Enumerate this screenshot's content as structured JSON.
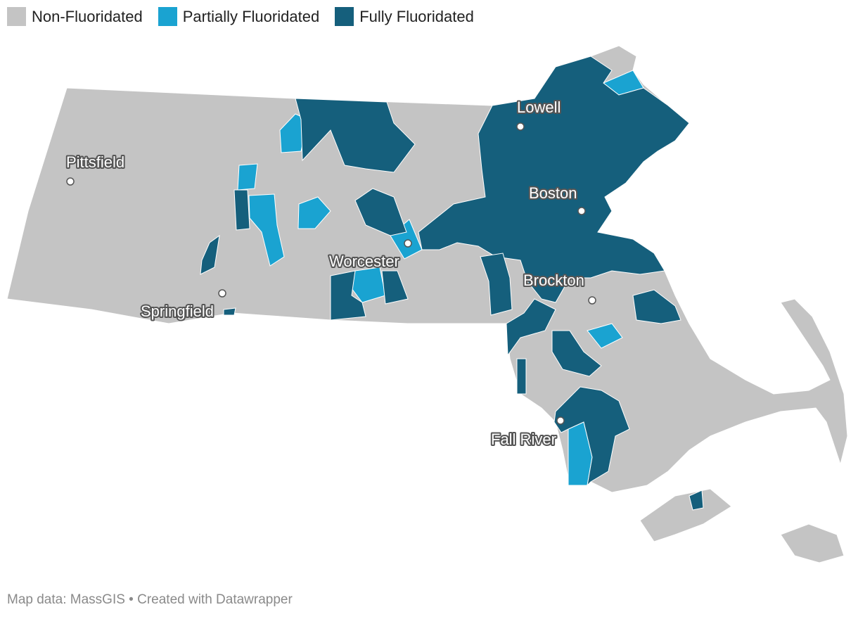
{
  "legend": [
    {
      "label": "Non-Fluoridated",
      "color": "#c4c4c4"
    },
    {
      "label": "Partially Fluoridated",
      "color": "#1aa3d1"
    },
    {
      "label": "Fully Fluoridated",
      "color": "#155f7c"
    }
  ],
  "cities": [
    {
      "name": "Lowell"
    },
    {
      "name": "Pittsfield"
    },
    {
      "name": "Boston"
    },
    {
      "name": "Worcester"
    },
    {
      "name": "Brockton"
    },
    {
      "name": "Springfield"
    },
    {
      "name": "Fall River"
    }
  ],
  "footer": {
    "credit": "Map data: MassGIS • Created with Datawrapper"
  },
  "colors": {
    "non": "#c4c4c4",
    "partial": "#1aa3d1",
    "full": "#155f7c",
    "border": "#ffffff"
  }
}
